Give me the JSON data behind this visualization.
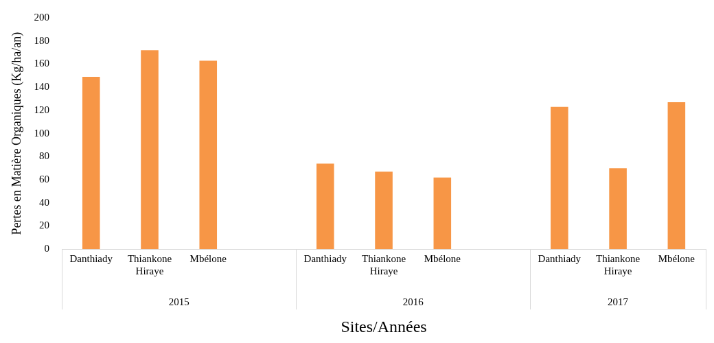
{
  "chart_data": {
    "type": "bar",
    "xlabel": "Sites/Années",
    "ylabel": "Pertes en Matière Organiques (Kg/ha/an)",
    "categories": [
      "Danthiady",
      "Thiankone Hiraye",
      "Mbélone",
      null,
      "Danthiady",
      "Thiankone Hiraye",
      "Mbélone",
      null,
      "Danthiady",
      "Thiankone Hiraye",
      "Mbélone"
    ],
    "values": [
      149,
      172,
      163,
      null,
      74,
      67,
      62,
      null,
      123,
      70,
      127
    ],
    "color": "#f79646",
    "ylim": [
      0,
      200
    ],
    "yticks": [
      0,
      20,
      40,
      60,
      80,
      100,
      120,
      140,
      160,
      180,
      200
    ],
    "annotations": [
      "2015",
      "2016",
      "2017"
    ],
    "grid": false,
    "legend": false
  }
}
